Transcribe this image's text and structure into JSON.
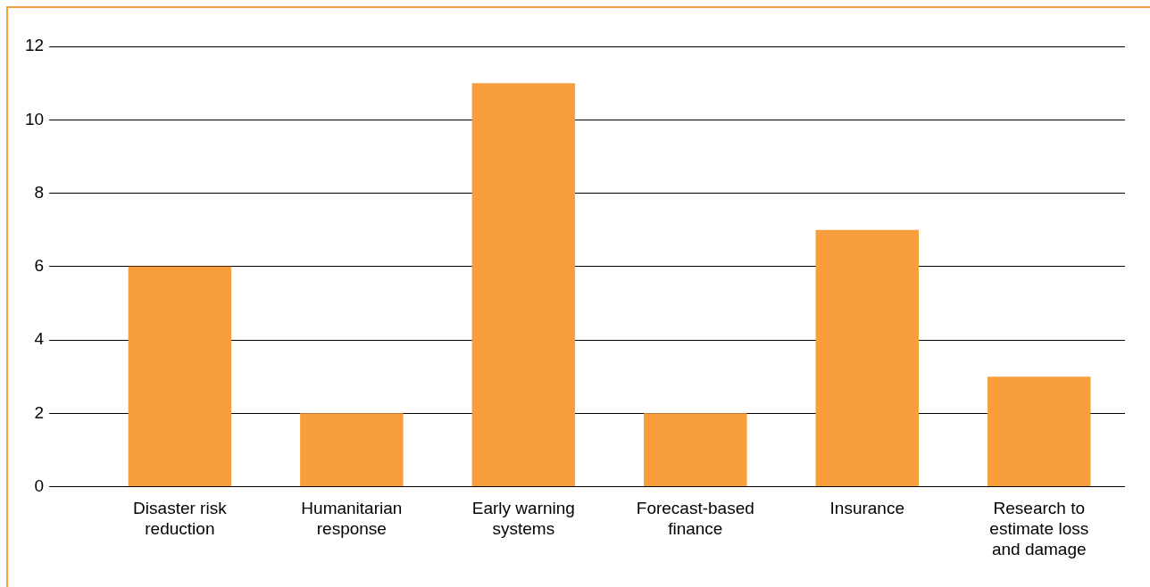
{
  "chart_data": {
    "type": "bar",
    "categories": [
      "Disaster risk reduction",
      "Humanitarian response",
      "Early warning systems",
      "Forecast-based finance",
      "Insurance",
      "Research to estimate loss and damage"
    ],
    "values": [
      6,
      2,
      11,
      2,
      7,
      3
    ],
    "color": "#f89e3c",
    "ylim": [
      0,
      12
    ],
    "yticks": [
      0,
      2,
      4,
      6,
      8,
      10,
      12
    ],
    "grid": "y"
  }
}
